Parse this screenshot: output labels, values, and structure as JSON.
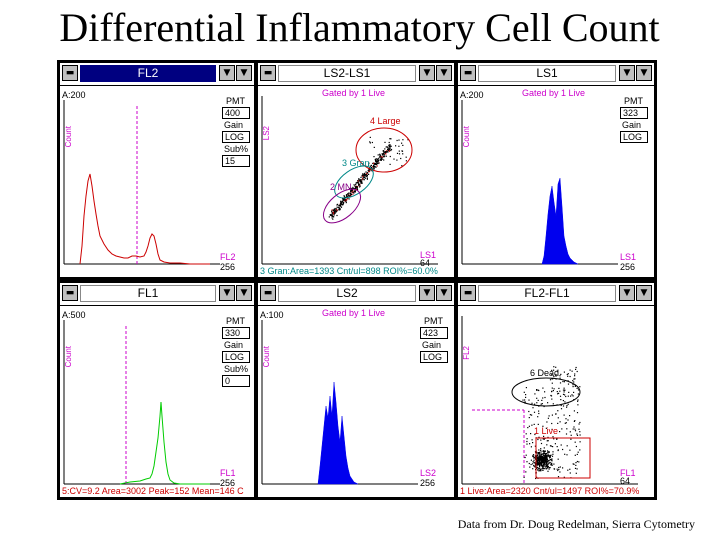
{
  "slide": {
    "title": "Differential Inflammatory Cell Count",
    "credit": "Data from Dr. Doug Redelman, Sierra Cytometry"
  },
  "common": {
    "menu_icon": "minus-icon",
    "menu_glyph": "▬",
    "down_icon": "triangle-down-icon",
    "down_glyph": "▼",
    "more_icon": "triangle-down-icon",
    "more_glyph": "▼",
    "gated_label": "Gated by 1 Live",
    "count_label": "Count"
  },
  "panels": {
    "fl2": {
      "title": "FL2",
      "active": true,
      "scale": "A:200",
      "pmt_label": "PMT",
      "pmt_value": "400",
      "gain_label": "Gain",
      "gain_value": "LOG",
      "sub_label": "Sub%",
      "sub_value": "15",
      "axis_label": "FL2",
      "axis_max": "256"
    },
    "ls2ls1": {
      "title": "LS2-LS1",
      "y_label": "LS2",
      "x_label": "LS1",
      "x_max": "64",
      "gate_large": "4 Large",
      "gate_gran": "3 Gran",
      "gate_mn": "2 MN",
      "status": "3 Gran:Area=1393 Cnt/ul=898 ROI%=60.0%"
    },
    "ls1": {
      "title": "LS1",
      "scale": "A:200",
      "pmt_label": "PMT",
      "pmt_value": "323",
      "gain_label": "Gain",
      "gain_value": "LOG",
      "axis_label": "LS1",
      "axis_max": "256"
    },
    "fl1": {
      "title": "FL1",
      "scale": "A:500",
      "pmt_label": "PMT",
      "pmt_value": "330",
      "gain_label": "Gain",
      "gain_value": "LOG",
      "sub_label": "Sub%",
      "sub_value": "0",
      "axis_label": "FL1",
      "axis_max": "256",
      "status": "5:CV=9.2 Area=3002 Peak=152 Mean=146 C"
    },
    "ls2": {
      "title": "LS2",
      "scale": "A:100",
      "pmt_label": "PMT",
      "pmt_value": "423",
      "gain_label": "Gain",
      "gain_value": "LOG",
      "axis_label": "LS2",
      "axis_max": "256"
    },
    "fl2fl1": {
      "title": "FL2-FL1",
      "y_label": "FL2",
      "x_label": "FL1",
      "x_max": "64",
      "gate_dead": "6 Dead",
      "gate_live": "1 Live",
      "status": "1 Live:Area=2320 Cnt/ul=1497 ROI%=70.9%"
    }
  },
  "colors": {
    "fl2_trace": "#cc0000",
    "fl1_trace": "#00cc00",
    "blue_hist": "#0000ee",
    "active_title": "#000080",
    "gate_large": "#cc0000",
    "gate_gran": "#008888",
    "gate_mn": "#880088"
  }
}
